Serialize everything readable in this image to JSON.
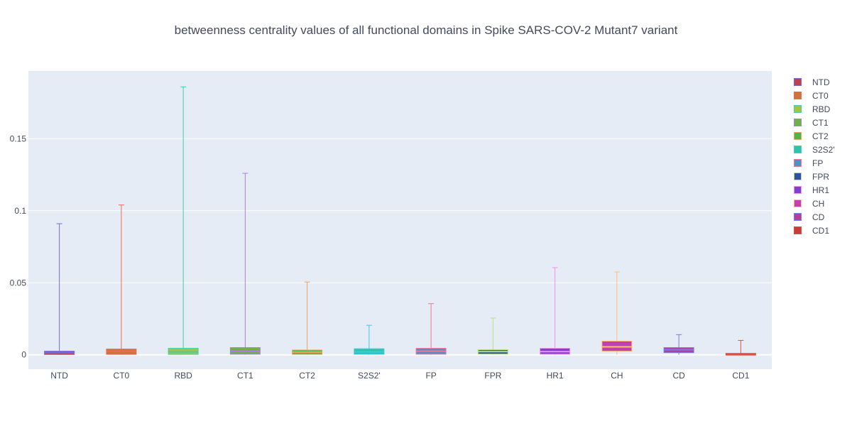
{
  "chart_data": {
    "type": "box",
    "title": "betweenness centrality values of all functional domains in Spike SARS-COV-2 Mutant7 variant",
    "xlabel": "",
    "ylabel": "",
    "ylim": [
      -0.01,
      0.197
    ],
    "yticks": [
      0,
      0.05,
      0.1,
      0.15
    ],
    "ytick_labels": [
      "0",
      "0.05",
      "0.1",
      "0.15"
    ],
    "grid": true,
    "legend_position": "right",
    "categories": [
      "NTD",
      "CT0",
      "RBD",
      "CT1",
      "CT2",
      "S2S2'",
      "FP",
      "FPR",
      "HR1",
      "CH",
      "CD",
      "CD1"
    ],
    "series": [
      {
        "name": "NTD",
        "fill": "#c0404e",
        "line": "#7a6ad8",
        "min": 0,
        "q1": 0.0002,
        "median": 0.0015,
        "q3": 0.0025,
        "max": 0.091
      },
      {
        "name": "CT0",
        "fill": "#c9763e",
        "line": "#ee6b52",
        "min": 0,
        "q1": 0.0003,
        "median": 0.0025,
        "q3": 0.004,
        "max": 0.104
      },
      {
        "name": "RBD",
        "fill": "#a8c04a",
        "line": "#3fd0a8",
        "min": 0,
        "q1": 0.0003,
        "median": 0.002,
        "q3": 0.0045,
        "max": 0.186
      },
      {
        "name": "CT1",
        "fill": "#6fb04a",
        "line": "#b07ae8",
        "min": 0,
        "q1": 0.0004,
        "median": 0.0025,
        "q3": 0.005,
        "max": 0.126
      },
      {
        "name": "CT2",
        "fill": "#4ab848",
        "line": "#f0a060",
        "min": 0,
        "q1": 0.0003,
        "median": 0.0018,
        "q3": 0.0033,
        "max": 0.0505
      },
      {
        "name": "S2S2'",
        "fill": "#2ec4a4",
        "line": "#40c8e8",
        "min": 0,
        "q1": 0.0004,
        "median": 0.002,
        "q3": 0.0042,
        "max": 0.0205
      },
      {
        "name": "FP",
        "fill": "#5090c8",
        "line": "#f07890",
        "min": 0,
        "q1": 0.0004,
        "median": 0.0025,
        "q3": 0.0045,
        "max": 0.0355
      },
      {
        "name": "FPR",
        "fill": "#3050a0",
        "line": "#b8e080",
        "min": 0,
        "q1": 0.0005,
        "median": 0.0022,
        "q3": 0.0035,
        "max": 0.0255
      },
      {
        "name": "HR1",
        "fill": "#8040c8",
        "line": "#f090f0",
        "min": 0,
        "q1": 0.0004,
        "median": 0.0022,
        "q3": 0.0045,
        "max": 0.0605
      },
      {
        "name": "CH",
        "fill": "#c040b0",
        "line": "#ffc070",
        "min": 0,
        "q1": 0.0025,
        "median": 0.0055,
        "q3": 0.0095,
        "max": 0.0575
      },
      {
        "name": "CD",
        "fill": "#b040a0",
        "line": "#7a7ae8",
        "min": 0,
        "q1": 0.0015,
        "median": 0.0035,
        "q3": 0.005,
        "max": 0.014
      },
      {
        "name": "CD1",
        "fill": "#c83c3c",
        "line": "#e05040",
        "min": 0,
        "q1": 0.0001,
        "median": 0.0005,
        "q3": 0.001,
        "max": 0.01
      }
    ]
  }
}
